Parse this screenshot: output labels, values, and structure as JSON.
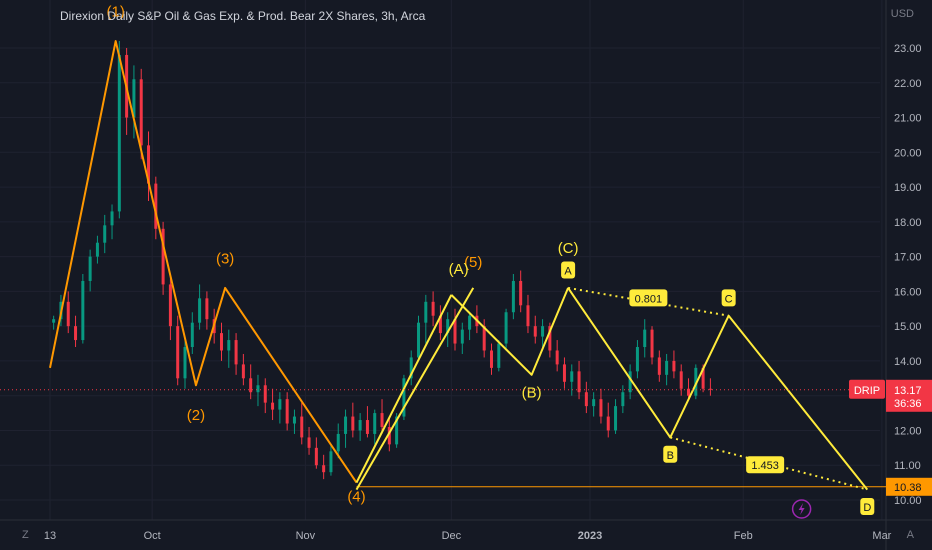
{
  "title": "Direxion Daily S&P Oil & Gas Exp. & Prod. Bear 2X Shares, 3h, Arca",
  "currency": "USD",
  "price_tag": {
    "symbol": "DRIP",
    "price": "13.17",
    "countdown": "36:36",
    "value": 13.17,
    "color": "#f23645"
  },
  "level_tag": {
    "label": "10.38",
    "value": 10.38,
    "color": "#ff9800"
  },
  "x_axis_labels": [
    {
      "label": "13",
      "t": 0
    },
    {
      "label": "Oct",
      "t": 14
    },
    {
      "label": "Nov",
      "t": 35
    },
    {
      "label": "Dec",
      "t": 55
    },
    {
      "label": "2023",
      "t": 74
    },
    {
      "label": "Feb",
      "t": 95
    },
    {
      "label": "Mar",
      "t": 114
    }
  ],
  "footer": {
    "left": "Z",
    "right": "A"
  },
  "chart_data": {
    "type": "candlestick",
    "ylim": [
      9.9,
      24.0
    ],
    "y_ticks": [
      "10.00",
      "11.00",
      "12.00",
      "13.00",
      "14.00",
      "15.00",
      "16.00",
      "17.00",
      "18.00",
      "19.00",
      "20.00",
      "21.00",
      "22.00",
      "23.00"
    ],
    "colors": {
      "up": "#089981",
      "down": "#f23645",
      "orange": "#ff9800",
      "yellow": "#ffeb3b"
    },
    "candles": [
      [
        15.1,
        15.3,
        14.9,
        15.2
      ],
      [
        15.2,
        15.9,
        15.0,
        15.7
      ],
      [
        15.7,
        16.0,
        14.8,
        15.0
      ],
      [
        15.0,
        15.3,
        14.4,
        14.6
      ],
      [
        14.6,
        16.5,
        14.5,
        16.3
      ],
      [
        16.3,
        17.2,
        16.0,
        17.0
      ],
      [
        17.0,
        17.6,
        16.8,
        17.4
      ],
      [
        17.4,
        18.2,
        17.1,
        17.9
      ],
      [
        17.9,
        18.5,
        17.5,
        18.3
      ],
      [
        18.3,
        23.2,
        18.1,
        22.8
      ],
      [
        22.8,
        23.0,
        20.5,
        21.0
      ],
      [
        21.0,
        22.5,
        20.4,
        22.1
      ],
      [
        22.1,
        22.4,
        19.8,
        20.2
      ],
      [
        20.2,
        20.6,
        18.6,
        19.1
      ],
      [
        19.1,
        19.3,
        17.5,
        17.8
      ],
      [
        17.8,
        18.0,
        15.9,
        16.2
      ],
      [
        16.2,
        16.5,
        14.6,
        15.0
      ],
      [
        15.0,
        15.3,
        13.3,
        13.5
      ],
      [
        13.5,
        14.6,
        13.2,
        14.4
      ],
      [
        14.4,
        15.4,
        14.2,
        15.1
      ],
      [
        15.1,
        16.2,
        14.9,
        15.8
      ],
      [
        15.8,
        16.0,
        14.9,
        15.2
      ],
      [
        15.2,
        15.5,
        14.5,
        14.8
      ],
      [
        14.8,
        15.1,
        14.0,
        14.3
      ],
      [
        14.3,
        14.9,
        13.8,
        14.6
      ],
      [
        14.6,
        14.8,
        13.6,
        13.9
      ],
      [
        13.9,
        14.2,
        13.3,
        13.5
      ],
      [
        13.5,
        13.9,
        12.9,
        13.1
      ],
      [
        13.1,
        13.6,
        12.7,
        13.3
      ],
      [
        13.3,
        13.5,
        12.5,
        12.8
      ],
      [
        12.8,
        13.2,
        12.3,
        12.6
      ],
      [
        12.6,
        13.1,
        12.2,
        12.9
      ],
      [
        12.9,
        13.1,
        12.0,
        12.2
      ],
      [
        12.2,
        12.6,
        11.9,
        12.4
      ],
      [
        12.4,
        12.8,
        11.6,
        11.8
      ],
      [
        11.8,
        12.1,
        11.3,
        11.5
      ],
      [
        11.5,
        11.8,
        10.9,
        11.0
      ],
      [
        11.0,
        11.3,
        10.6,
        10.8
      ],
      [
        10.8,
        11.6,
        10.7,
        11.4
      ],
      [
        11.4,
        12.2,
        11.2,
        11.9
      ],
      [
        11.9,
        12.6,
        11.5,
        12.4
      ],
      [
        12.4,
        12.8,
        11.8,
        12.0
      ],
      [
        12.0,
        12.5,
        11.7,
        12.3
      ],
      [
        12.3,
        12.7,
        11.8,
        11.9
      ],
      [
        11.9,
        12.6,
        11.6,
        12.5
      ],
      [
        12.5,
        12.9,
        11.9,
        12.1
      ],
      [
        12.1,
        12.4,
        11.4,
        11.6
      ],
      [
        11.6,
        12.5,
        11.5,
        12.4
      ],
      [
        12.4,
        13.6,
        12.3,
        13.5
      ],
      [
        13.5,
        14.3,
        13.3,
        14.1
      ],
      [
        14.1,
        15.3,
        14.0,
        15.1
      ],
      [
        15.1,
        15.9,
        14.5,
        15.7
      ],
      [
        15.7,
        16.0,
        15.0,
        15.3
      ],
      [
        15.3,
        15.6,
        14.6,
        14.8
      ],
      [
        14.8,
        15.4,
        14.4,
        15.2
      ],
      [
        15.2,
        15.5,
        14.3,
        14.5
      ],
      [
        14.5,
        15.1,
        14.2,
        14.9
      ],
      [
        14.9,
        15.4,
        14.6,
        15.3
      ],
      [
        15.3,
        15.6,
        14.8,
        15.0
      ],
      [
        15.0,
        15.2,
        14.1,
        14.3
      ],
      [
        14.3,
        14.5,
        13.6,
        13.8
      ],
      [
        13.8,
        14.6,
        13.7,
        14.5
      ],
      [
        14.5,
        15.5,
        14.3,
        15.4
      ],
      [
        15.4,
        16.5,
        15.2,
        16.3
      ],
      [
        16.3,
        16.6,
        15.4,
        15.6
      ],
      [
        15.6,
        15.9,
        14.8,
        15.0
      ],
      [
        15.0,
        15.3,
        14.5,
        14.7
      ],
      [
        14.7,
        15.2,
        14.4,
        15.0
      ],
      [
        15.0,
        15.1,
        14.1,
        14.3
      ],
      [
        14.3,
        14.6,
        13.7,
        13.9
      ],
      [
        13.9,
        14.1,
        13.2,
        13.4
      ],
      [
        13.4,
        13.9,
        13.0,
        13.7
      ],
      [
        13.7,
        14.0,
        12.9,
        13.1
      ],
      [
        13.1,
        13.4,
        12.5,
        12.7
      ],
      [
        12.7,
        13.1,
        12.4,
        12.9
      ],
      [
        12.9,
        13.2,
        12.2,
        12.4
      ],
      [
        12.4,
        12.8,
        11.8,
        12.0
      ],
      [
        12.0,
        12.9,
        11.9,
        12.7
      ],
      [
        12.7,
        13.3,
        12.5,
        13.1
      ],
      [
        13.1,
        13.9,
        12.9,
        13.7
      ],
      [
        13.7,
        14.6,
        13.5,
        14.4
      ],
      [
        14.4,
        15.2,
        14.1,
        14.9
      ],
      [
        14.9,
        15.0,
        13.9,
        14.1
      ],
      [
        14.1,
        14.3,
        13.4,
        13.6
      ],
      [
        13.6,
        14.2,
        13.3,
        14.0
      ],
      [
        14.0,
        14.3,
        13.5,
        13.7
      ],
      [
        13.7,
        13.9,
        13.0,
        13.2
      ],
      [
        13.2,
        13.5,
        12.9,
        13.0
      ],
      [
        13.0,
        13.9,
        12.9,
        13.8
      ],
      [
        13.8,
        13.9,
        13.1,
        13.2
      ],
      [
        13.2,
        13.5,
        13.0,
        13.17
      ]
    ],
    "wave_lines": [
      {
        "color": "#ff9800",
        "points": [
          [
            0,
            13.8
          ],
          [
            9,
            23.2
          ],
          [
            20,
            13.3
          ],
          [
            24,
            16.1
          ],
          [
            42,
            10.5
          ]
        ]
      },
      {
        "color": "#ffeb3b",
        "points": [
          [
            42,
            10.5
          ],
          [
            55,
            15.9
          ]
        ]
      },
      {
        "color": "#ffeb3b",
        "points": [
          [
            42,
            10.3
          ],
          [
            58,
            16.1
          ]
        ]
      },
      {
        "color": "#ffeb3b",
        "points": [
          [
            55,
            15.9
          ],
          [
            66,
            13.6
          ],
          [
            71,
            16.1
          ]
        ]
      },
      {
        "color": "#ffeb3b",
        "points": [
          [
            71,
            16.1
          ],
          [
            85,
            11.8
          ],
          [
            93,
            15.3
          ],
          [
            112,
            10.3
          ]
        ]
      }
    ],
    "dotted_lines": [
      {
        "color": "#ffeb3b",
        "points": [
          [
            71,
            16.1
          ],
          [
            93,
            15.3
          ]
        ]
      },
      {
        "color": "#ffeb3b",
        "points": [
          [
            85,
            11.8
          ],
          [
            112,
            10.3
          ]
        ]
      }
    ],
    "level_line": {
      "value": 10.38,
      "from": 42,
      "color": "#ff9800"
    },
    "wave_labels": [
      {
        "text": "(1)",
        "t": 9,
        "v": 23.9,
        "color": "#ff9800"
      },
      {
        "text": "(2)",
        "t": 20,
        "v": 12.3,
        "color": "#ff9800"
      },
      {
        "text": "(3)",
        "t": 24,
        "v": 16.8,
        "color": "#ff9800"
      },
      {
        "text": "(4)",
        "t": 42,
        "v": 9.95,
        "color": "#ff9800"
      },
      {
        "text": "(5)",
        "t": 58,
        "v": 16.7,
        "color": "#ff9800"
      },
      {
        "text": "(A)",
        "t": 56,
        "v": 16.5,
        "color": "#ffeb3b"
      },
      {
        "text": "(B)",
        "t": 66,
        "v": 12.95,
        "color": "#ffeb3b"
      },
      {
        "text": "(C)",
        "t": 71,
        "v": 17.1,
        "color": "#ffeb3b"
      }
    ],
    "box_labels": [
      {
        "text": "A",
        "t": 71,
        "v": 16.6
      },
      {
        "text": "B",
        "t": 85,
        "v": 11.3
      },
      {
        "text": "C",
        "t": 93,
        "v": 15.8
      },
      {
        "text": "D",
        "t": 112,
        "v": 9.8
      },
      {
        "text": "0.801",
        "t": 82,
        "v": 15.8
      },
      {
        "text": "1.453",
        "t": 98,
        "v": 11.0
      }
    ]
  }
}
